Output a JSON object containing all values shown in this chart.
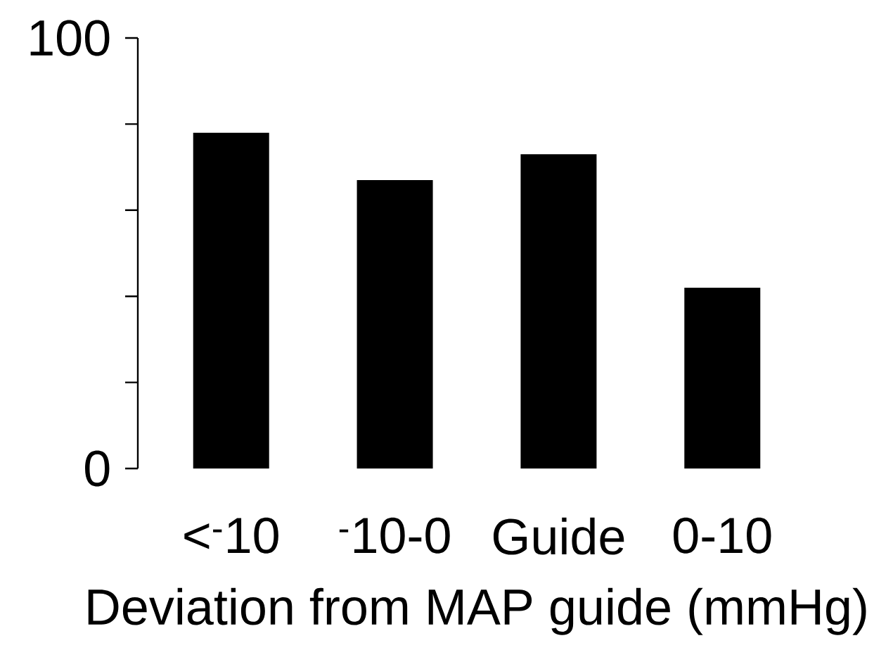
{
  "chart_data": {
    "type": "bar",
    "categories": [
      "<$^{-}$10",
      "$^{-}$10-0",
      "Guide",
      "0-10"
    ],
    "values": [
      78,
      67,
      73,
      42
    ],
    "color": "#000000",
    "xlabel": "Deviation from MAP guide (mmHg)",
    "ylim": [
      0,
      100
    ],
    "yticks": [
      0,
      {
        "value": 20,
        "label": null
      },
      {
        "value": 40,
        "label": null
      },
      {
        "value": 60,
        "label": null
      },
      {
        "value": 80,
        "label": null
      },
      100
    ],
    "grid": false
  }
}
